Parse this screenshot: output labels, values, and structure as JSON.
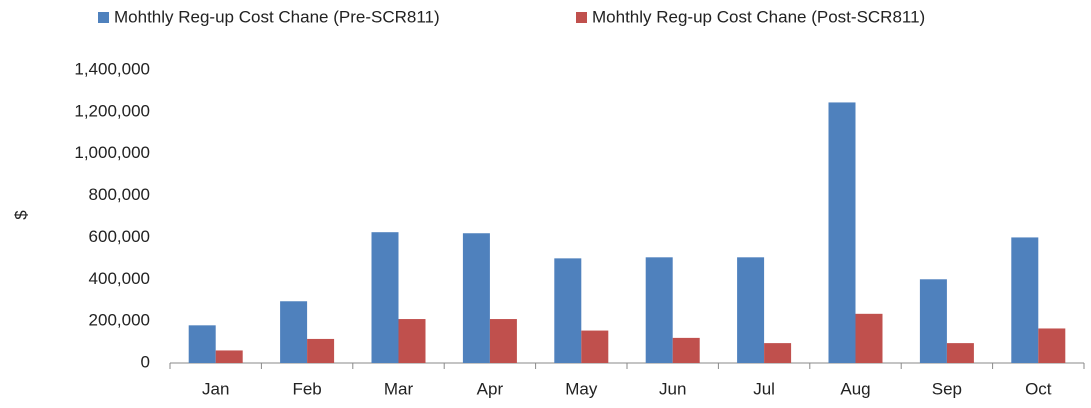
{
  "chart_data": {
    "type": "bar",
    "y_label": "$",
    "categories": [
      "Jan",
      "Feb",
      "Mar",
      "Apr",
      "May",
      "Jun",
      "Jul",
      "Aug",
      "Sep",
      "Oct"
    ],
    "series": [
      {
        "name": "Mohthly Reg-up Cost Chane (Pre-SCR811)",
        "color": "#4f81bd",
        "values": [
          180000,
          295000,
          625000,
          620000,
          500000,
          505000,
          505000,
          1245000,
          400000,
          600000
        ]
      },
      {
        "name": "Mohthly Reg-up Cost Chane (Post-SCR811)",
        "color": "#c0504d",
        "values": [
          60000,
          115000,
          210000,
          210000,
          155000,
          120000,
          95000,
          235000,
          95000,
          165000
        ]
      }
    ],
    "ylim": [
      0,
      1400000
    ],
    "yticks": [
      0,
      {
        "value": 200000,
        "label": "200,000"
      },
      {
        "value": 400000,
        "label": "400,000"
      },
      {
        "value": 600000,
        "label": "600,000"
      },
      {
        "value": 800000,
        "label": "800,000"
      },
      {
        "value": 1000000,
        "label": "1,000,000"
      },
      {
        "value": 1200000,
        "label": "1,200,000"
      },
      {
        "value": 1400000,
        "label": "1,400,000"
      }
    ],
    "grid": false,
    "legend": "top"
  }
}
